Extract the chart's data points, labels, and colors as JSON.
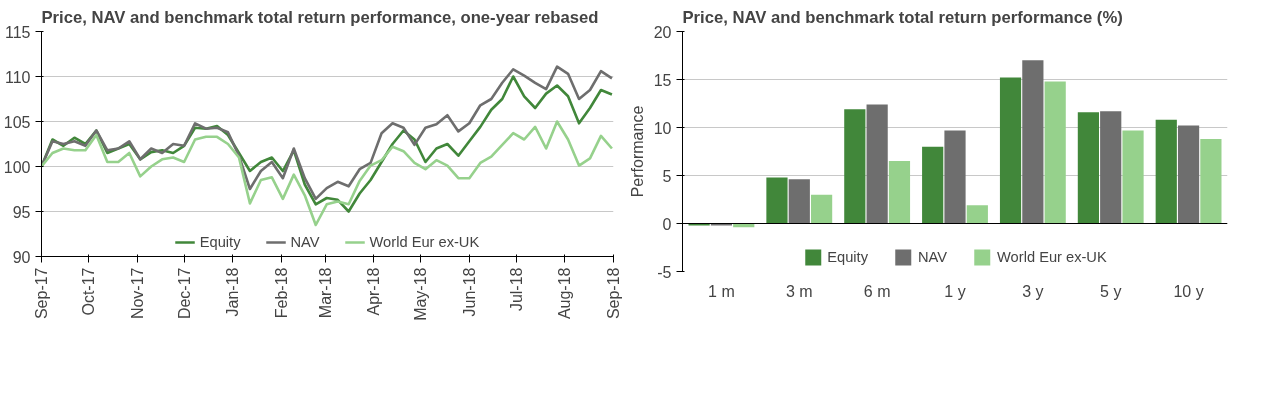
{
  "chart_data": [
    {
      "type": "line",
      "title": "Price, NAV and benchmark total return performance, one-year rebased",
      "x": [
        "2017-09-01",
        "2017-09-08",
        "2017-09-15",
        "2017-09-22",
        "2017-09-29",
        "2017-10-06",
        "2017-10-13",
        "2017-10-20",
        "2017-10-27",
        "2017-11-03",
        "2017-11-10",
        "2017-11-17",
        "2017-11-24",
        "2017-12-01",
        "2017-12-08",
        "2017-12-15",
        "2017-12-22",
        "2017-12-29",
        "2018-01-05",
        "2018-01-12",
        "2018-01-19",
        "2018-01-26",
        "2018-02-02",
        "2018-02-09",
        "2018-02-16",
        "2018-02-23",
        "2018-03-02",
        "2018-03-09",
        "2018-03-16",
        "2018-03-23",
        "2018-03-30",
        "2018-04-06",
        "2018-04-13",
        "2018-04-20",
        "2018-04-27",
        "2018-05-04",
        "2018-05-11",
        "2018-05-18",
        "2018-05-25",
        "2018-06-01",
        "2018-06-08",
        "2018-06-15",
        "2018-06-22",
        "2018-06-29",
        "2018-07-06",
        "2018-07-13",
        "2018-07-20",
        "2018-07-27",
        "2018-08-03",
        "2018-08-10",
        "2018-08-17",
        "2018-08-24",
        "2018-08-31"
      ],
      "series": [
        {
          "name": "Equity",
          "color": "#41873a",
          "values": [
            100,
            103,
            102.3,
            103.2,
            102.5,
            104,
            101.5,
            102,
            102.5,
            100.8,
            101.6,
            101.8,
            101.5,
            102.3,
            104.3,
            104.2,
            104.5,
            103.5,
            101.5,
            99.5,
            100.5,
            101,
            99.5,
            101.8,
            98,
            95.8,
            96.5,
            96.3,
            95,
            97,
            98.5,
            100.5,
            102.5,
            104,
            103,
            100.5,
            102,
            102.5,
            101.2,
            102.8,
            104.4,
            106.3,
            107.5,
            110,
            107.8,
            106.5,
            108.1,
            109,
            107.8,
            104.8,
            106.5,
            108.5,
            108
          ]
        },
        {
          "name": "NAV",
          "color": "#6e6e6e",
          "values": [
            100,
            102.8,
            102.5,
            102.8,
            102.3,
            104,
            101.8,
            102,
            102.8,
            100.8,
            102,
            101.5,
            102.5,
            102.3,
            104.8,
            104.2,
            104.3,
            103.8,
            101.2,
            97.5,
            99.5,
            100.5,
            98.7,
            102,
            98.7,
            96.4,
            97.6,
            98.3,
            97.8,
            99.7,
            100.4,
            103.7,
            104.8,
            104.3,
            102.4,
            104.3,
            104.7,
            105.7,
            103.9,
            104.8,
            106.8,
            107.5,
            109.3,
            110.8,
            110.1,
            109.3,
            108.6,
            111.1,
            110.3,
            107.5,
            108.5,
            110.6,
            109.8
          ]
        },
        {
          "name": "World Eur ex-UK",
          "color": "#96d18c",
          "values": [
            100,
            101.5,
            102,
            101.8,
            101.8,
            103.5,
            100.5,
            100.5,
            101.5,
            98.9,
            100,
            100.8,
            101,
            100.5,
            103,
            103.3,
            103.3,
            102.5,
            101,
            95.9,
            98.5,
            98.8,
            96.4,
            99.1,
            96.8,
            93.5,
            95.8,
            96.1,
            95.8,
            98.4,
            100.1,
            100.7,
            102.2,
            101.7,
            100.4,
            99.7,
            100.7,
            100.1,
            98.7,
            98.7,
            100.4,
            101.1,
            102.4,
            103.7,
            103,
            104.4,
            102,
            105,
            103,
            100.1,
            100.9,
            103.4,
            102
          ]
        }
      ],
      "xlim": [
        "2017-09-01",
        "2018-09-01"
      ],
      "xticks": [
        {
          "value": "2017-09-01",
          "label": "Sep-17"
        },
        {
          "value": "2017-10-01",
          "label": "Oct-17"
        },
        {
          "value": "2017-11-01",
          "label": "Nov-17"
        },
        {
          "value": "2017-12-01",
          "label": "Dec-17"
        },
        {
          "value": "2018-01-01",
          "label": "Jan-18"
        },
        {
          "value": "2018-02-01",
          "label": "Feb-18"
        },
        {
          "value": "2018-03-01",
          "label": "Mar-18"
        },
        {
          "value": "2018-04-01",
          "label": "Apr-18"
        },
        {
          "value": "2018-05-01",
          "label": "May-18"
        },
        {
          "value": "2018-06-01",
          "label": "Jun-18"
        },
        {
          "value": "2018-07-01",
          "label": "Jul-18"
        },
        {
          "value": "2018-08-01",
          "label": "Aug-18"
        },
        {
          "value": "2018-09-01",
          "label": "Sep-18"
        }
      ],
      "ylim": [
        90,
        115
      ],
      "yticks": [
        90,
        95,
        100,
        105,
        110,
        115
      ],
      "grid": "y",
      "legend": "bottom",
      "line_style": "solid"
    },
    {
      "type": "bar",
      "title": "Price, NAV and benchmark total return performance (%)",
      "ylabel": "Performance",
      "categories": [
        "1 m",
        "3 m",
        "6 m",
        "1 y",
        "3 y",
        "5 y",
        "10 y"
      ],
      "series": [
        {
          "name": "Equity",
          "color": "#41873a",
          "values": [
            -0.2,
            4.8,
            11.9,
            8.0,
            15.2,
            11.6,
            10.8
          ]
        },
        {
          "name": "NAV",
          "color": "#6e6e6e",
          "values": [
            -0.2,
            4.6,
            12.4,
            9.7,
            17.0,
            11.7,
            10.2
          ]
        },
        {
          "name": "World Eur ex-UK",
          "color": "#96d18c",
          "values": [
            -0.4,
            3.0,
            6.5,
            1.9,
            14.8,
            9.7,
            8.8
          ]
        }
      ],
      "ylim": [
        -5,
        20
      ],
      "yticks": [
        -5,
        0,
        5,
        10,
        15,
        20
      ],
      "grid": "y",
      "legend": "bottom"
    }
  ]
}
